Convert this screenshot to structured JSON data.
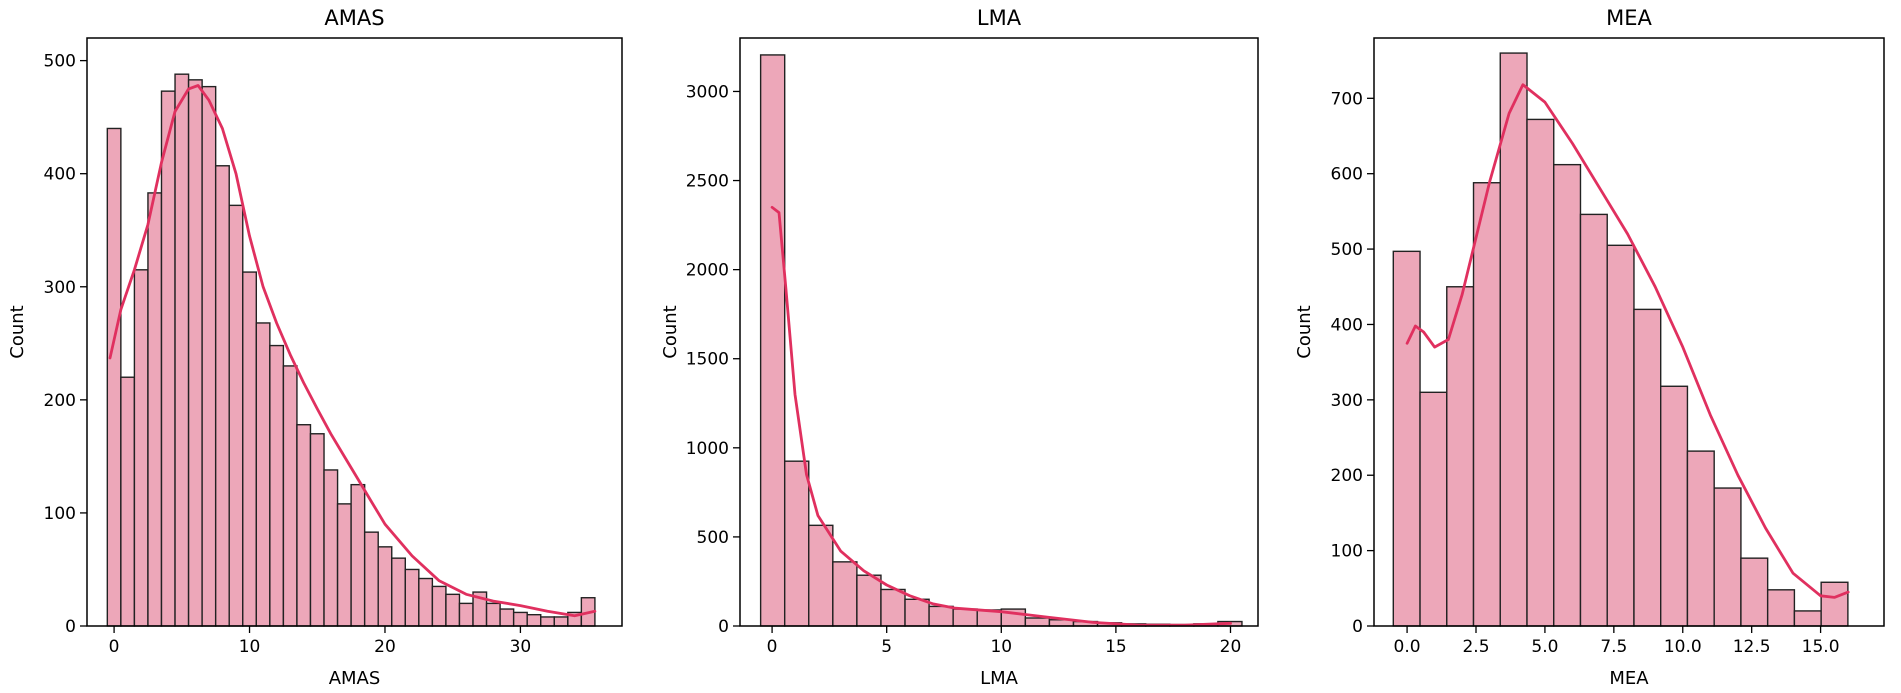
{
  "chart_data": [
    {
      "type": "bar",
      "subtype": "histogram-with-kde",
      "title": "AMAS",
      "xlabel": "AMAS",
      "ylabel": "Count",
      "xlim": [
        -2,
        37.5
      ],
      "ylim": [
        0,
        520
      ],
      "xticks": [
        "0",
        "10",
        "20",
        "30"
      ],
      "xtick_values": [
        0,
        10,
        20,
        30
      ],
      "yticks": [
        "0",
        "100",
        "200",
        "300",
        "400",
        "500"
      ],
      "ytick_values": [
        0,
        100,
        200,
        300,
        400,
        500
      ],
      "bin_start": -0.5,
      "bin_width": 1,
      "values": [
        440,
        220,
        315,
        383,
        473,
        488,
        483,
        477,
        407,
        372,
        313,
        268,
        248,
        230,
        178,
        170,
        138,
        108,
        125,
        83,
        70,
        60,
        50,
        42,
        35,
        28,
        20,
        30,
        20,
        15,
        12,
        10,
        8,
        8,
        12,
        25
      ],
      "kde_x": [
        -0.3,
        0.5,
        1.5,
        2.5,
        3.5,
        4.5,
        5.5,
        6.2,
        7,
        8,
        9,
        10,
        11,
        12,
        13,
        14,
        15,
        16,
        17,
        18,
        19,
        20,
        22,
        24,
        26,
        28,
        30,
        32,
        34,
        35.5
      ],
      "kde_y": [
        237,
        280,
        315,
        355,
        410,
        455,
        475,
        478,
        465,
        440,
        400,
        345,
        300,
        268,
        240,
        215,
        192,
        170,
        150,
        130,
        110,
        90,
        62,
        40,
        28,
        22,
        18,
        13,
        9,
        13
      ],
      "bar_color": "#eda7b9",
      "line_color": "#e0305f",
      "grid": false
    },
    {
      "type": "bar",
      "subtype": "histogram-with-kde",
      "title": "LMA",
      "xlabel": "LMA",
      "ylabel": "Count",
      "xlim": [
        -1.4,
        21.2
      ],
      "ylim": [
        0,
        3300
      ],
      "xticks": [
        "0",
        "5",
        "10",
        "15",
        "20"
      ],
      "xtick_values": [
        0,
        5,
        10,
        15,
        20
      ],
      "yticks": [
        "0",
        "500",
        "1000",
        "1500",
        "2000",
        "2500",
        "3000"
      ],
      "ytick_values": [
        0,
        500,
        1000,
        1500,
        2000,
        2500,
        3000
      ],
      "bin_start": -0.5,
      "bin_width": 1.05,
      "values": [
        3205,
        925,
        565,
        360,
        285,
        205,
        150,
        110,
        95,
        90,
        95,
        45,
        35,
        25,
        18,
        12,
        10,
        8,
        12,
        25
      ],
      "kde_x": [
        0,
        0.3,
        0.6,
        1,
        1.5,
        2,
        3,
        4,
        5,
        6,
        7,
        8,
        10,
        12,
        14,
        16,
        18,
        20
      ],
      "kde_y": [
        2350,
        2320,
        1900,
        1300,
        850,
        620,
        420,
        310,
        230,
        170,
        125,
        100,
        80,
        50,
        20,
        5,
        5,
        15
      ],
      "bar_color": "#eda7b9",
      "line_color": "#e0305f",
      "grid": false
    },
    {
      "type": "bar",
      "subtype": "histogram-with-kde",
      "title": "MEA",
      "xlabel": "MEA",
      "ylabel": "Count",
      "xlim": [
        -1.2,
        17.3
      ],
      "ylim": [
        0,
        780
      ],
      "xticks": [
        "0.0",
        "2.5",
        "5.0",
        "7.5",
        "10.0",
        "12.5",
        "15.0"
      ],
      "xtick_values": [
        0,
        2.5,
        5,
        7.5,
        10,
        12.5,
        15
      ],
      "yticks": [
        "0",
        "100",
        "200",
        "300",
        "400",
        "500",
        "600",
        "700"
      ],
      "ytick_values": [
        0,
        100,
        200,
        300,
        400,
        500,
        600,
        700
      ],
      "bin_start": -0.5,
      "bin_width": 0.97,
      "values": [
        497,
        310,
        450,
        588,
        760,
        672,
        612,
        546,
        505,
        420,
        318,
        232,
        183,
        90,
        48,
        20,
        58
      ],
      "kde_x": [
        0,
        0.3,
        0.6,
        1,
        1.5,
        2,
        3,
        3.7,
        4.2,
        5,
        6,
        7,
        8,
        9,
        10,
        11,
        12,
        13,
        14,
        15,
        15.5,
        16
      ],
      "kde_y": [
        375,
        398,
        390,
        370,
        380,
        440,
        590,
        680,
        718,
        695,
        640,
        580,
        520,
        450,
        370,
        280,
        200,
        130,
        70,
        40,
        38,
        45
      ],
      "bar_color": "#eda7b9",
      "line_color": "#e0305f",
      "grid": false
    }
  ]
}
